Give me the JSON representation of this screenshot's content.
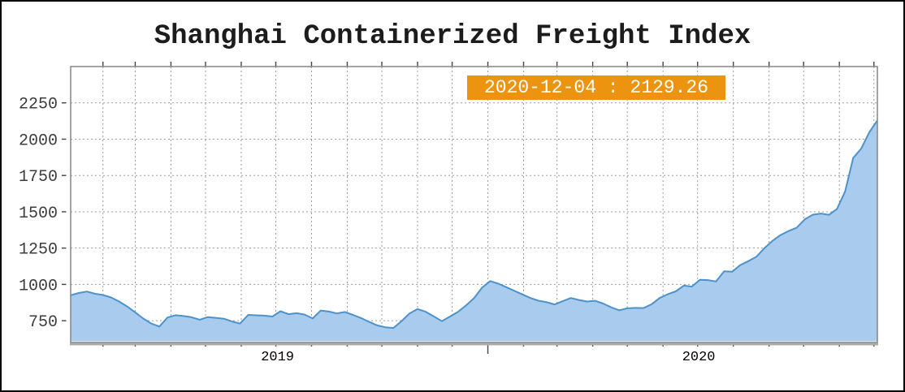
{
  "title": "Shanghai Containerized Freight Index",
  "tooltip": {
    "label": "2020-12-04 : 2129.26",
    "date": "2020-12-04",
    "value": 2129.26,
    "bg_color": "#EC9410",
    "text_color": "#FFFFFF"
  },
  "chart_data": {
    "type": "area",
    "title": "Shanghai Containerized Freight Index",
    "xlabel": "",
    "ylabel": "",
    "legend": "none",
    "grid": "dashed gray, horizontal every 250, vertical monthly",
    "ylim": [
      600,
      2500
    ],
    "yticks": [
      750,
      1000,
      1250,
      1500,
      1750,
      2000,
      2250
    ],
    "x_year_labels": [
      "2019",
      "2020"
    ],
    "fill_color": "#A9CBEE",
    "line_color": "#4D92C9",
    "annotation": "2020-12-04 : 2129.26",
    "x": [
      "2019-01-04",
      "2019-01-11",
      "2019-01-18",
      "2019-01-25",
      "2019-02-01",
      "2019-02-08",
      "2019-02-15",
      "2019-02-22",
      "2019-03-01",
      "2019-03-08",
      "2019-03-15",
      "2019-03-22",
      "2019-03-29",
      "2019-04-05",
      "2019-04-12",
      "2019-04-19",
      "2019-04-26",
      "2019-05-03",
      "2019-05-10",
      "2019-05-17",
      "2019-05-24",
      "2019-05-31",
      "2019-06-07",
      "2019-06-14",
      "2019-06-21",
      "2019-06-28",
      "2019-07-05",
      "2019-07-12",
      "2019-07-19",
      "2019-07-26",
      "2019-08-02",
      "2019-08-09",
      "2019-08-16",
      "2019-08-23",
      "2019-08-30",
      "2019-09-06",
      "2019-09-13",
      "2019-09-20",
      "2019-09-27",
      "2019-10-04",
      "2019-10-11",
      "2019-10-18",
      "2019-10-25",
      "2019-11-01",
      "2019-11-08",
      "2019-11-15",
      "2019-11-22",
      "2019-11-29",
      "2019-12-06",
      "2019-12-13",
      "2019-12-20",
      "2019-12-27",
      "2020-01-03",
      "2020-01-10",
      "2020-01-17",
      "2020-01-24",
      "2020-01-31",
      "2020-02-07",
      "2020-02-14",
      "2020-02-21",
      "2020-02-28",
      "2020-03-06",
      "2020-03-13",
      "2020-03-20",
      "2020-03-27",
      "2020-04-03",
      "2020-04-10",
      "2020-04-17",
      "2020-04-24",
      "2020-05-01",
      "2020-05-08",
      "2020-05-15",
      "2020-05-22",
      "2020-05-29",
      "2020-06-05",
      "2020-06-12",
      "2020-06-19",
      "2020-06-26",
      "2020-07-03",
      "2020-07-10",
      "2020-07-17",
      "2020-07-24",
      "2020-07-31",
      "2020-08-07",
      "2020-08-14",
      "2020-08-21",
      "2020-08-28",
      "2020-09-04",
      "2020-09-11",
      "2020-09-18",
      "2020-09-25",
      "2020-10-02",
      "2020-10-09",
      "2020-10-16",
      "2020-10-23",
      "2020-10-30",
      "2020-11-06",
      "2020-11-13",
      "2020-11-20",
      "2020-11-27",
      "2020-12-04"
    ],
    "values": [
      925,
      941,
      951,
      936,
      927,
      910,
      882,
      848,
      808,
      765,
      730,
      710,
      772,
      788,
      782,
      774,
      757,
      775,
      770,
      764,
      745,
      730,
      790,
      787,
      785,
      779,
      815,
      795,
      802,
      792,
      766,
      820,
      813,
      800,
      810,
      790,
      768,
      742,
      718,
      705,
      700,
      746,
      800,
      830,
      812,
      780,
      747,
      778,
      810,
      855,
      905,
      978,
      1023,
      1005,
      981,
      956,
      931,
      906,
      888,
      877,
      862,
      885,
      906,
      893,
      882,
      887,
      868,
      842,
      822,
      835,
      838,
      837,
      863,
      906,
      932,
      952,
      992,
      985,
      1032,
      1030,
      1020,
      1090,
      1088,
      1133,
      1160,
      1190,
      1250,
      1300,
      1340,
      1368,
      1390,
      1448,
      1480,
      1488,
      1479,
      1520,
      1640,
      1870,
      1935,
      2048,
      2129.26
    ]
  }
}
